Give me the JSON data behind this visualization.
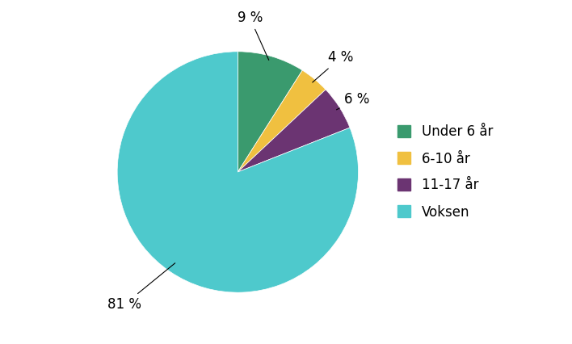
{
  "labels": [
    "Under 6 år",
    "6-10 år",
    "11-17 år",
    "Voksen"
  ],
  "values": [
    9,
    4,
    6,
    81
  ],
  "colors": [
    "#3a9a6e",
    "#f0c040",
    "#6b3472",
    "#4ec9cc"
  ],
  "pct_labels": [
    "9 %",
    "4 %",
    "6 %",
    "81 %"
  ],
  "startangle": 90,
  "background_color": "#ffffff",
  "legend_fontsize": 12,
  "label_fontsize": 12
}
